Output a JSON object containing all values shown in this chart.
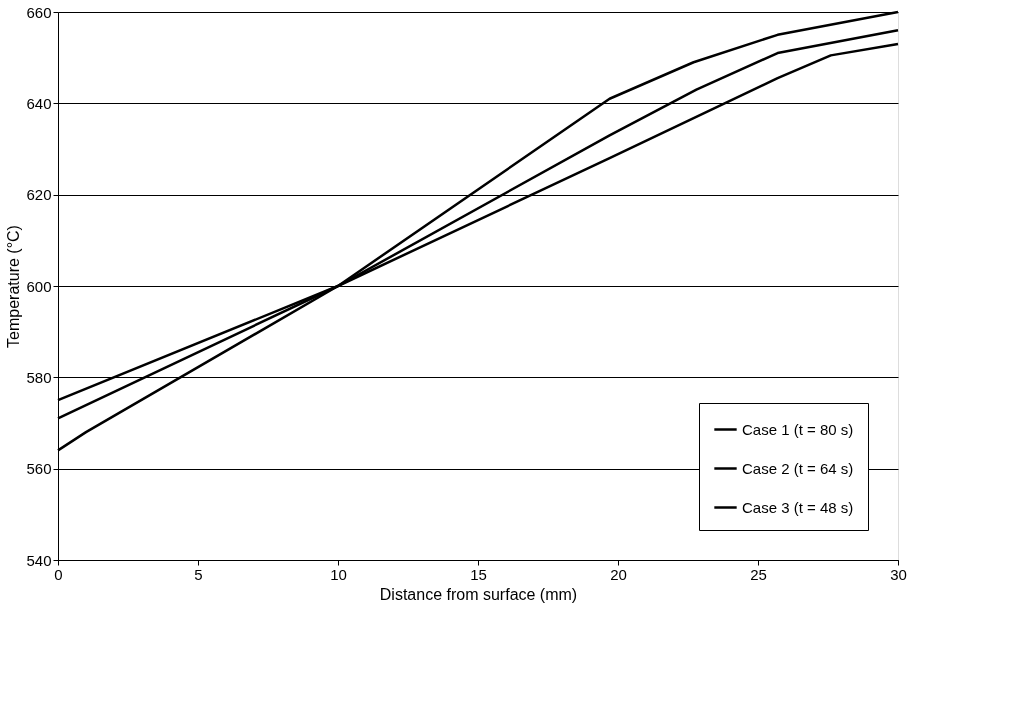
{
  "chart_data": {
    "type": "line",
    "xlabel": "Distance from surface (mm)",
    "ylabel": "Temperature (°C)",
    "xlim": [
      0,
      30
    ],
    "xticks": [
      0,
      5,
      10,
      15,
      20,
      25,
      30
    ],
    "ylim": [
      540,
      660
    ],
    "yticks": [
      540,
      560,
      580,
      600,
      620,
      640,
      660
    ],
    "grid": "y",
    "legend": "bottom right",
    "marker": "none",
    "line_style": "solid",
    "series": [
      {
        "name": "Case 1 (t = 80 s)",
        "color": "#000000",
        "x": [
          0,
          1,
          10,
          19.7,
          22.7,
          25.7,
          30
        ],
        "values": [
          564,
          568,
          600,
          641,
          649,
          655,
          660
        ]
      },
      {
        "name": "Case 2 (t = 64 s)",
        "color": "#000000",
        "x": [
          0,
          10,
          19.7,
          22.8,
          25.7,
          30
        ],
        "values": [
          571,
          600,
          633,
          643,
          651,
          656
        ]
      },
      {
        "name": "Case 3 (t = 48 s)",
        "color": "#000000",
        "x": [
          0,
          10,
          19.7,
          25.7,
          27.6,
          30
        ],
        "values": [
          575,
          600,
          628,
          645.5,
          650.5,
          653
        ]
      }
    ]
  }
}
